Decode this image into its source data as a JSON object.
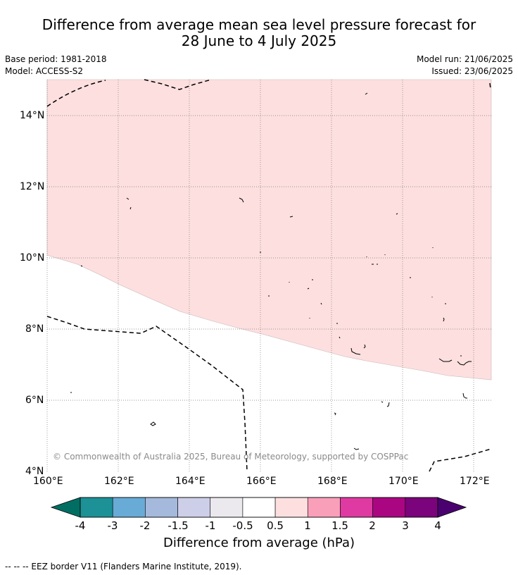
{
  "title": {
    "line1": "Difference from average mean sea level pressure forecast for",
    "line2": "28 June to 4 July 2025"
  },
  "meta": {
    "base_period": "Base period: 1981-2018",
    "model": "Model: ACCESS-S2",
    "model_run": "Model run: 21/06/2025",
    "issued": "Issued: 23/06/2025"
  },
  "map": {
    "lat_labels": [
      "14°N",
      "12°N",
      "10°N",
      "8°N",
      "6°N",
      "4°N"
    ],
    "lon_labels": [
      "160°E",
      "162°E",
      "164°E",
      "166°E",
      "168°E",
      "170°E",
      "172°E"
    ],
    "copyright": "© Commonwealth of Australia 2025, Bureau of Meteorology, supported by COSPPac",
    "anomaly_fill_color": "#fddfdf",
    "anomaly_category": "0.5 to 1"
  },
  "colorbar": {
    "ticks": [
      "-4",
      "-3",
      "-2",
      "-1.5",
      "-1",
      "-0.5",
      "0.5",
      "1",
      "1.5",
      "2",
      "3",
      "4"
    ],
    "colors": [
      "#006e62",
      "#1c9196",
      "#68abd6",
      "#a5b9dc",
      "#cdcfe8",
      "#ebe9ee",
      "#ffffff",
      "#fddfdf",
      "#f99fb9",
      "#df3aa2",
      "#aa0682",
      "#7b037c",
      "#4b0070"
    ],
    "title": "Difference from average (hPa)"
  },
  "footer": {
    "legend": "--  --  -- EEZ border V11 (Flanders Marine Institute, 2019)."
  }
}
